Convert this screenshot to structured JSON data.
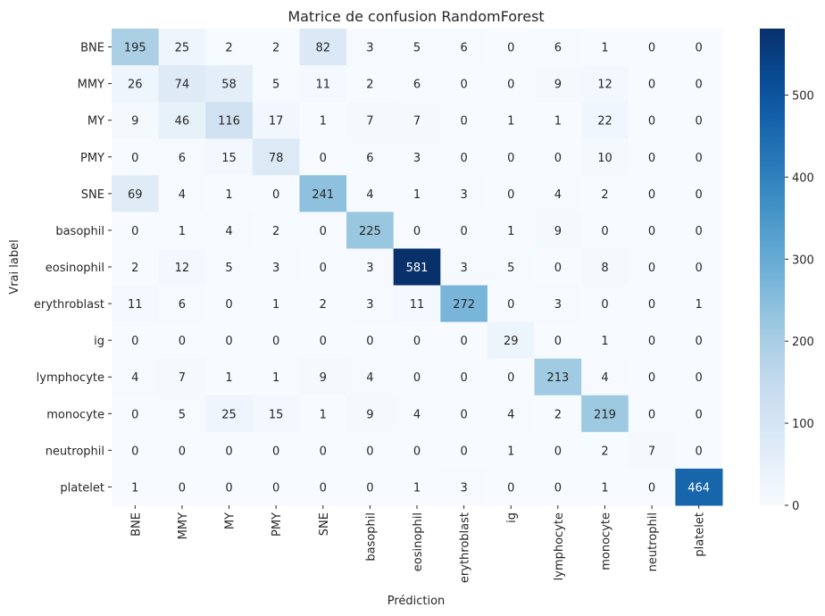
{
  "chart_data": {
    "type": "heatmap",
    "title": "Matrice de confusion RandomForest",
    "xlabel": "Prédiction",
    "ylabel": "Vrai label",
    "x_categories": [
      "BNE",
      "MMY",
      "MY",
      "PMY",
      "SNE",
      "basophil",
      "eosinophil",
      "erythroblast",
      "ig",
      "lymphocyte",
      "monocyte",
      "neutrophil",
      "platelet"
    ],
    "y_categories": [
      "BNE",
      "MMY",
      "MY",
      "PMY",
      "SNE",
      "basophil",
      "eosinophil",
      "erythroblast",
      "ig",
      "lymphocyte",
      "monocyte",
      "neutrophil",
      "platelet"
    ],
    "values": [
      [
        195,
        25,
        2,
        2,
        82,
        3,
        5,
        6,
        0,
        6,
        1,
        0,
        0
      ],
      [
        26,
        74,
        58,
        5,
        11,
        2,
        6,
        0,
        0,
        9,
        12,
        0,
        0
      ],
      [
        9,
        46,
        116,
        17,
        1,
        7,
        7,
        0,
        1,
        1,
        22,
        0,
        0
      ],
      [
        0,
        6,
        15,
        78,
        0,
        6,
        3,
        0,
        0,
        0,
        10,
        0,
        0
      ],
      [
        69,
        4,
        1,
        0,
        241,
        4,
        1,
        3,
        0,
        4,
        2,
        0,
        0
      ],
      [
        0,
        1,
        4,
        2,
        0,
        225,
        0,
        0,
        1,
        9,
        0,
        0,
        0
      ],
      [
        2,
        12,
        5,
        3,
        0,
        3,
        581,
        3,
        5,
        0,
        8,
        0,
        0
      ],
      [
        11,
        6,
        0,
        1,
        2,
        3,
        11,
        272,
        0,
        3,
        0,
        0,
        1
      ],
      [
        0,
        0,
        0,
        0,
        0,
        0,
        0,
        0,
        29,
        0,
        1,
        0,
        0
      ],
      [
        4,
        7,
        1,
        1,
        9,
        4,
        0,
        0,
        0,
        213,
        4,
        0,
        0
      ],
      [
        0,
        5,
        25,
        15,
        1,
        9,
        4,
        0,
        4,
        2,
        219,
        0,
        0
      ],
      [
        0,
        0,
        0,
        0,
        0,
        0,
        0,
        0,
        1,
        0,
        2,
        7,
        0
      ],
      [
        1,
        0,
        0,
        0,
        0,
        0,
        1,
        3,
        0,
        0,
        1,
        0,
        464
      ]
    ],
    "colormap": "Blues",
    "vmin": 0,
    "vmax": 581,
    "colorbar_ticks": [
      0,
      100,
      200,
      300,
      400,
      500
    ]
  }
}
